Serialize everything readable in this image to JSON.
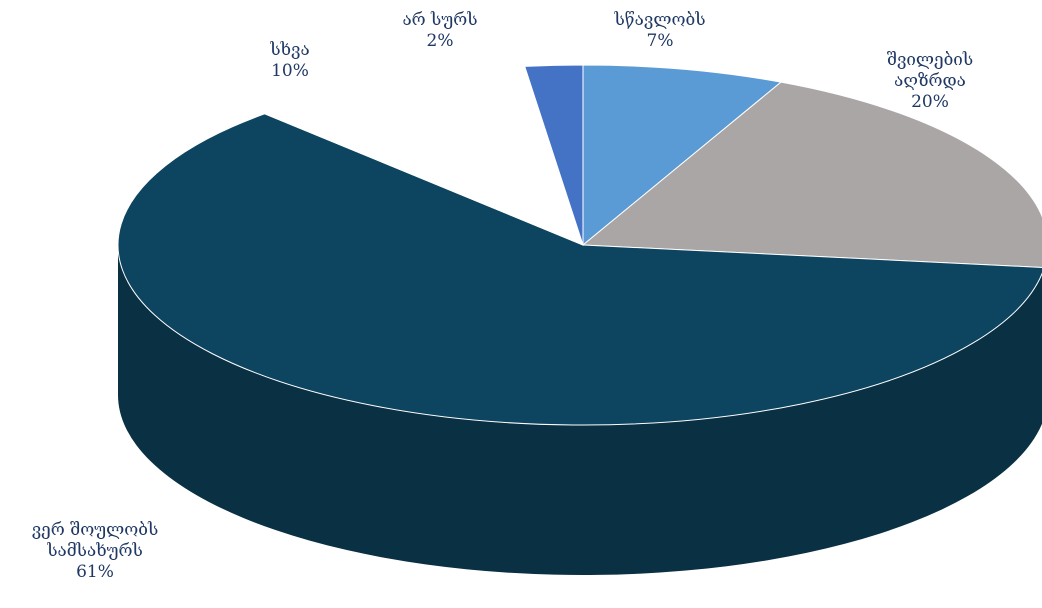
{
  "chart_data": {
    "type": "pie",
    "categories": [
      "სწავლობს",
      "შვილების\nაღზრდა",
      "ვერ შოულობს\nსამსახურს",
      "სხვა",
      "არ სურს"
    ],
    "values": [
      7,
      20,
      61,
      10,
      2
    ],
    "value_labels": [
      "7%",
      "20%",
      "61%",
      "10%",
      "2%"
    ],
    "colors": [
      "#5b9bd5",
      "#aaa6a6",
      "#0d4460",
      "#ffffff",
      "#4472c4"
    ]
  }
}
